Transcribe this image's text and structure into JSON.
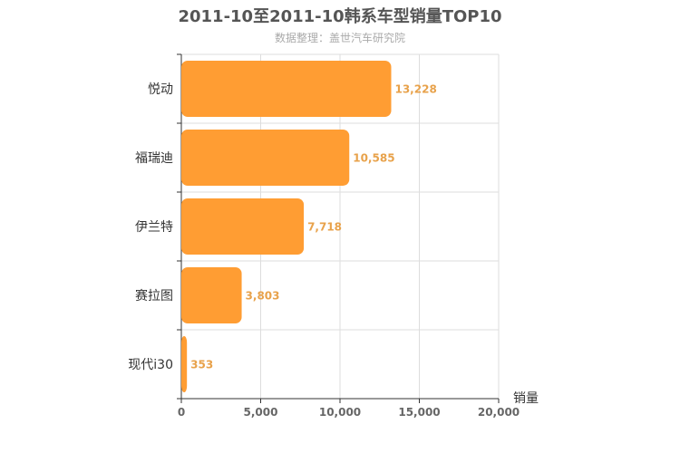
{
  "chart_data": {
    "type": "bar",
    "orientation": "horizontal",
    "title": "2011-10至2011-10韩系车型销量TOP10",
    "subtitle": "数据整理：盖世汽车研究院",
    "categories": [
      "悦动",
      "福瑞迪",
      "伊兰特",
      "赛拉图",
      "现代i30"
    ],
    "values": [
      13228,
      10585,
      7718,
      3803,
      353
    ],
    "value_labels": [
      "13,228",
      "10,585",
      "7,718",
      "3,803",
      "353"
    ],
    "xlabel": "销量",
    "ylabel": "",
    "xlim": [
      0,
      20000
    ],
    "xticks": [
      0,
      5000,
      10000,
      15000,
      20000
    ],
    "xtick_labels": [
      "0",
      "5,000",
      "10,000",
      "15,000",
      "20,000"
    ],
    "grid": true,
    "bar_color": "#ff9d33",
    "label_color": "#e8a24b"
  }
}
